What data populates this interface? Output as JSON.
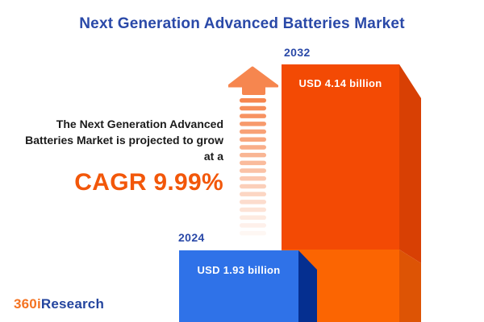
{
  "title": "Next Generation Advanced Batteries Market",
  "projection": {
    "text": "The Next Generation Advanced Batteries Market is projected to grow at a",
    "cagr_label": "CAGR 9.99%"
  },
  "bars": [
    {
      "year": "2024",
      "value_label": "USD 1.93 billion",
      "value": 1.93
    },
    {
      "year": "2032",
      "value_label": "USD 4.14 billion",
      "value": 4.14
    }
  ],
  "logo": {
    "part1": "360i",
    "part2": "Research"
  },
  "icons": {
    "growth_arrow": "up-arrow-fading-dashes-icon"
  },
  "colors": {
    "title_blue": "#2a49a8",
    "body_text": "#1b1b1b",
    "cagr_orange": "#f2570a",
    "bar_2024_front": "#2f72e8",
    "bar_2024_side": "#052f90",
    "bar_2032_front": "#f34a04",
    "bar_2032_front_lower": "#fb6502",
    "bar_2032_side": "#d84004",
    "bar_2032_side_lower": "#dd5405",
    "arrow_orange": "#f6864f",
    "logo_orange": "#f47322",
    "logo_blue": "#24459e"
  },
  "chart_data": {
    "type": "bar",
    "title": "Next Generation Advanced Batteries Market",
    "categories": [
      "2024",
      "2032"
    ],
    "values": [
      1.93,
      4.14
    ],
    "value_labels": [
      "USD 1.93 billion",
      "USD 4.14 billion"
    ],
    "unit": "USD billion",
    "cagr_percent": 9.99,
    "annotation": "The Next Generation Advanced Batteries Market is projected to grow at a CAGR 9.99%",
    "series_colors": [
      "#2f72e8",
      "#f34a04"
    ],
    "bar_style": "3d-prism",
    "legend": "none",
    "grid": false,
    "axes": "none"
  }
}
